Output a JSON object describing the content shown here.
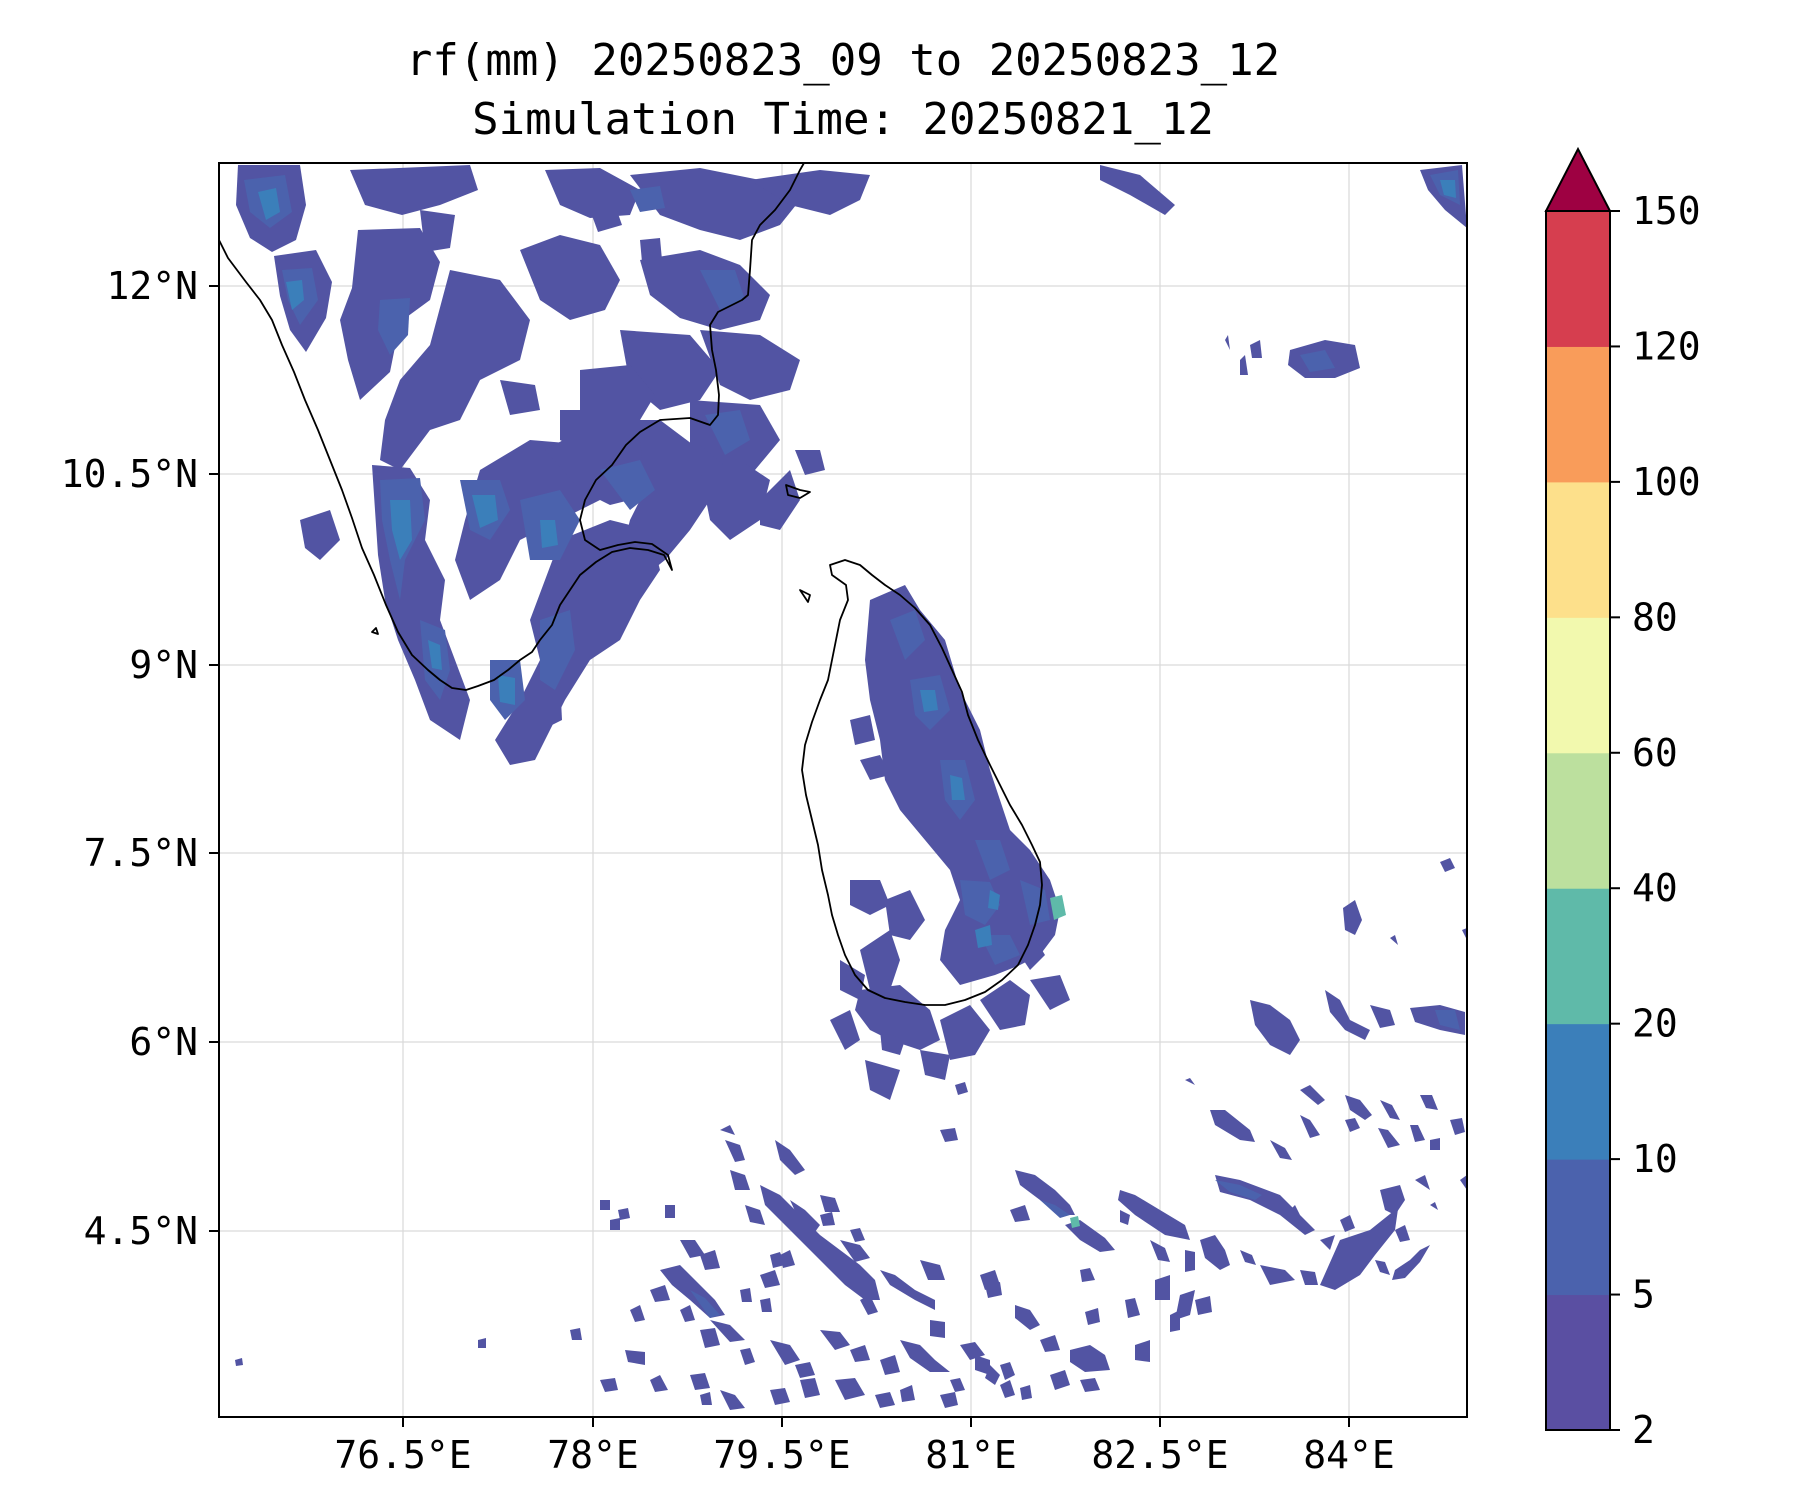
{
  "figure": {
    "title_line1": "rf(mm) 20250823_09 to 20250823_12",
    "title_line2": "Simulation Time: 20250821_12"
  },
  "map": {
    "x_ticks": [
      "76.5°E",
      "78°E",
      "79.5°E",
      "81°E",
      "82.5°E",
      "84°E"
    ],
    "y_ticks": [
      "12°N",
      "10.5°N",
      "9°N",
      "7.5°N",
      "6°N",
      "4.5°N"
    ],
    "lon_range": [
      75.05,
      84.95
    ],
    "lat_range": [
      2.95,
      12.95
    ],
    "gridlines": true,
    "field": "accumulated rainfall (mm), 3-hourly"
  },
  "colorbar": {
    "ticks": [
      "2",
      "5",
      "10",
      "20",
      "40",
      "60",
      "80",
      "100",
      "120",
      "150"
    ],
    "bins": [
      {
        "from": 2,
        "to": 5,
        "color": "#5a4fa2"
      },
      {
        "from": 5,
        "to": 10,
        "color": "#4b62ad"
      },
      {
        "from": 10,
        "to": 20,
        "color": "#3b7fba"
      },
      {
        "from": 20,
        "to": 40,
        "color": "#5fbaa9"
      },
      {
        "from": 40,
        "to": 60,
        "color": "#bce09e"
      },
      {
        "from": 60,
        "to": 80,
        "color": "#f2f9ae"
      },
      {
        "from": 80,
        "to": 100,
        "color": "#fde08b"
      },
      {
        "from": 100,
        "to": 120,
        "color": "#f99c5a"
      },
      {
        "from": 120,
        "to": 150,
        "color": "#d63e4f"
      }
    ],
    "extend_color": "#9e0142",
    "extend": "max"
  }
}
